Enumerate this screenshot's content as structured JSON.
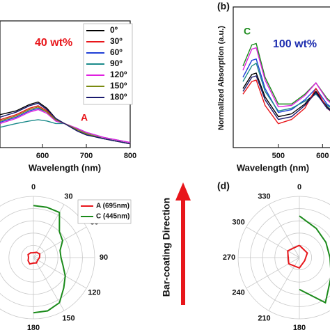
{
  "figure": {
    "arrow_label": "Bar-coating Direction",
    "panel_b": "(b)",
    "panel_d": "(d)"
  },
  "chart_data": [
    {
      "type": "line",
      "xlabel": "Wavelength (nm)",
      "xlim": [
        503,
        800
      ],
      "xticks": [
        600,
        700,
        800
      ],
      "ylim": [
        0,
        1
      ],
      "x": [
        503,
        540,
        570,
        590,
        610,
        630,
        650,
        680,
        700,
        740,
        800
      ],
      "annotations": [
        {
          "text": "40 wt%",
          "color": "#e8161b"
        },
        {
          "text": "A",
          "color": "#e8161b"
        }
      ],
      "series": [
        {
          "name": "0º",
          "color": "#000000",
          "values": [
            0.26,
            0.29,
            0.34,
            0.36,
            0.31,
            0.23,
            0.19,
            0.13,
            0.1,
            0.07,
            0.03
          ]
        },
        {
          "name": "30º",
          "color": "#e8161b",
          "values": [
            0.22,
            0.26,
            0.31,
            0.33,
            0.29,
            0.22,
            0.19,
            0.14,
            0.11,
            0.07,
            0.03
          ]
        },
        {
          "name": "60º",
          "color": "#1f3fd6",
          "values": [
            0.2,
            0.24,
            0.29,
            0.31,
            0.28,
            0.21,
            0.19,
            0.14,
            0.11,
            0.07,
            0.03
          ]
        },
        {
          "name": "90º",
          "color": "#1a8a8a",
          "values": [
            0.16,
            0.19,
            0.21,
            0.22,
            0.21,
            0.19,
            0.19,
            0.15,
            0.12,
            0.08,
            0.04
          ]
        },
        {
          "name": "120º",
          "color": "#e020e0",
          "values": [
            0.19,
            0.23,
            0.28,
            0.3,
            0.27,
            0.21,
            0.19,
            0.15,
            0.12,
            0.08,
            0.04
          ]
        },
        {
          "name": "150º",
          "color": "#7a8a10",
          "values": [
            0.21,
            0.25,
            0.3,
            0.32,
            0.28,
            0.22,
            0.19,
            0.14,
            0.11,
            0.07,
            0.03
          ]
        },
        {
          "name": "180º",
          "color": "#1a1a6e",
          "values": [
            0.24,
            0.28,
            0.33,
            0.35,
            0.3,
            0.23,
            0.19,
            0.13,
            0.1,
            0.07,
            0.03
          ]
        }
      ]
    },
    {
      "type": "line",
      "xlabel": "Wavelength (nm)",
      "ylabel": "Normalized Absorption (a.u.)",
      "xlim": [
        398,
        642
      ],
      "xticks": [
        500,
        600
      ],
      "ylim": [
        0,
        1
      ],
      "x": [
        420,
        440,
        450,
        470,
        500,
        530,
        560,
        585,
        610,
        642
      ],
      "annotations": [
        {
          "text": "C",
          "color": "#1a8a1a"
        },
        {
          "text": "100 wt%",
          "color": "#1f2fb0"
        }
      ],
      "series": [
        {
          "color": "#1a8a1a",
          "values": [
            0.58,
            0.73,
            0.74,
            0.5,
            0.31,
            0.31,
            0.38,
            0.46,
            0.35,
            0.26
          ]
        },
        {
          "color": "#e020e0",
          "values": [
            0.55,
            0.7,
            0.71,
            0.48,
            0.29,
            0.3,
            0.37,
            0.46,
            0.34,
            0.25
          ]
        },
        {
          "color": "#1f3fd6",
          "values": [
            0.5,
            0.62,
            0.63,
            0.42,
            0.25,
            0.27,
            0.34,
            0.42,
            0.31,
            0.23
          ]
        },
        {
          "color": "#1a8a8a",
          "values": [
            0.47,
            0.58,
            0.6,
            0.4,
            0.26,
            0.28,
            0.33,
            0.38,
            0.3,
            0.24
          ]
        },
        {
          "color": "#000000",
          "values": [
            0.42,
            0.52,
            0.53,
            0.36,
            0.22,
            0.24,
            0.31,
            0.4,
            0.29,
            0.21
          ]
        },
        {
          "color": "#e8161b",
          "values": [
            0.38,
            0.47,
            0.48,
            0.3,
            0.17,
            0.2,
            0.28,
            0.42,
            0.28,
            0.2
          ]
        },
        {
          "color": "#1a1a6e",
          "values": [
            0.4,
            0.5,
            0.51,
            0.34,
            0.2,
            0.22,
            0.3,
            0.39,
            0.28,
            0.21
          ]
        }
      ]
    },
    {
      "type": "polar",
      "rlim": [
        0,
        1
      ],
      "rticks": [
        0.2,
        0.4,
        0.6,
        0.8,
        1
      ],
      "angle_ticks": [
        0,
        30,
        60,
        90,
        120,
        150,
        180
      ],
      "series": [
        {
          "name": "A (695nm)",
          "color": "#e8161b",
          "theta": [
            0,
            30,
            60,
            90,
            120,
            150,
            180,
            210,
            240,
            270,
            300,
            330,
            360
          ],
          "r": [
            0.08,
            0.1,
            0.12,
            0.1,
            0.08,
            0.1,
            0.09,
            0.12,
            0.1,
            0.08,
            0.1,
            0.09,
            0.08
          ]
        },
        {
          "name": "C (445nm)",
          "color": "#1a8a1a",
          "theta": [
            0,
            15,
            30,
            45,
            60,
            75,
            90,
            105,
            120,
            135,
            150,
            165,
            180
          ],
          "r": [
            0.85,
            0.85,
            0.85,
            0.6,
            0.55,
            0.45,
            0.45,
            0.5,
            0.6,
            0.7,
            0.85,
            0.9,
            0.9
          ]
        }
      ]
    },
    {
      "type": "polar",
      "rlim": [
        0,
        1
      ],
      "rticks": [
        0.2,
        0.4,
        0.6,
        0.8,
        1
      ],
      "angle_ticks": [
        180,
        210,
        240,
        270,
        300,
        330,
        0
      ],
      "series": [
        {
          "color": "#e8161b",
          "theta": [
            0,
            60,
            120,
            180,
            240,
            300,
            360
          ],
          "r": [
            0.2,
            0.15,
            0.1,
            0.17,
            0.2,
            0.22,
            0.2
          ]
        },
        {
          "color": "#1a8a1a",
          "theta": [
            0,
            30,
            60,
            90,
            120,
            150,
            180
          ],
          "r": [
            0.68,
            0.55,
            0.5,
            0.5,
            0.6,
            0.85,
            0.52
          ]
        }
      ]
    }
  ]
}
